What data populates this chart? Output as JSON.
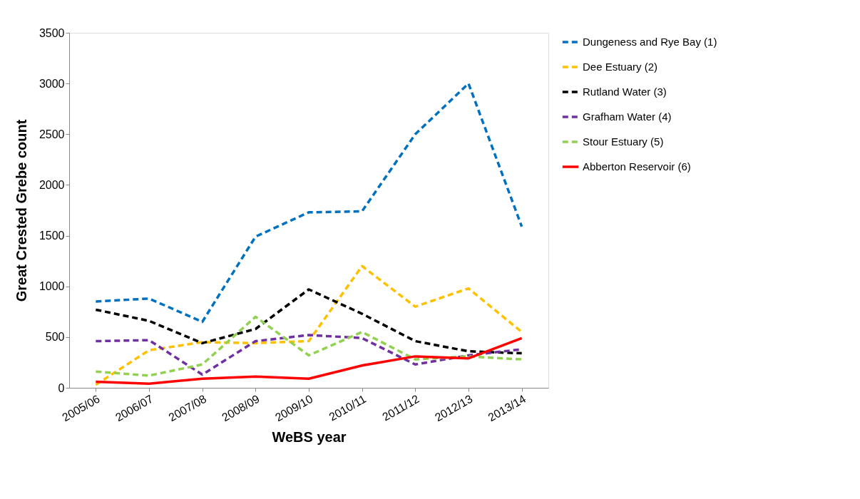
{
  "chart_data": {
    "type": "line",
    "xlabel": "WeBS year",
    "ylabel": "Great Crested Grebe count",
    "categories": [
      "2005/06",
      "2006/07",
      "2007/08",
      "2008/09",
      "2009/10",
      "2010/11",
      "2011/12",
      "2012/13",
      "2013/14"
    ],
    "ylim": [
      0,
      3500
    ],
    "yticks": [
      0,
      500,
      1000,
      1500,
      2000,
      2500,
      3000,
      3500
    ],
    "grid": false,
    "legend": "right",
    "marker": "none",
    "series": [
      {
        "name": "Dungeness and Rye Bay (1)",
        "color": "#0070c0",
        "line_style": "dashed",
        "values": [
          850,
          880,
          650,
          1490,
          1730,
          1740,
          2500,
          3000,
          1590
        ]
      },
      {
        "name": "Dee Estuary (2)",
        "color": "#ffc000",
        "line_style": "dashed",
        "values": [
          30,
          370,
          450,
          440,
          460,
          1200,
          800,
          980,
          550
        ]
      },
      {
        "name": "Rutland Water (3)",
        "color": "#000000",
        "line_style": "dashed",
        "values": [
          770,
          660,
          440,
          580,
          970,
          730,
          460,
          360,
          340
        ]
      },
      {
        "name": "Grafham Water (4)",
        "color": "#7030a0",
        "line_style": "dashed",
        "values": [
          460,
          470,
          130,
          460,
          520,
          490,
          230,
          320,
          380
        ]
      },
      {
        "name": "Stour Estuary (5)",
        "color": "#92d050",
        "line_style": "dashed",
        "values": [
          160,
          120,
          230,
          700,
          320,
          550,
          280,
          310,
          280
        ]
      },
      {
        "name": "Abberton Reservoir (6)",
        "color": "#ff0000",
        "line_style": "solid",
        "values": [
          60,
          40,
          90,
          110,
          90,
          220,
          310,
          290,
          490
        ]
      }
    ]
  }
}
